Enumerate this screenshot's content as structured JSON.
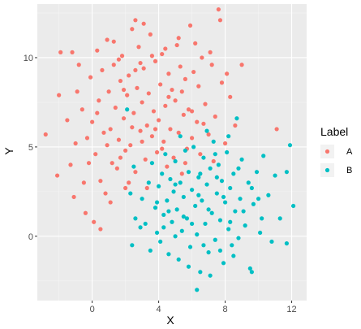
{
  "chart_data": {
    "type": "scatter",
    "title": "",
    "xlabel": "X",
    "ylabel": "Y",
    "xlim": [
      -3.3,
      12.9
    ],
    "ylim": [
      -3.6,
      13.0
    ],
    "x_ticks": [
      0,
      4,
      8,
      12
    ],
    "y_ticks": [
      0,
      5,
      10
    ],
    "grid": true,
    "panel_background": "#ebebeb",
    "legend": {
      "title": "Label",
      "placement": "right"
    },
    "series": [
      {
        "name": "A",
        "color": "#f8766d",
        "points": [
          [
            -2.8,
            5.7
          ],
          [
            -2.1,
            3.4
          ],
          [
            -1.9,
            10.3
          ],
          [
            -1.2,
            10.3
          ],
          [
            -1.5,
            6.5
          ],
          [
            -1.0,
            5.2
          ],
          [
            -1.3,
            4.0
          ],
          [
            -0.9,
            8.1
          ],
          [
            -0.6,
            7.1
          ],
          [
            -0.5,
            3.0
          ],
          [
            -0.3,
            5.5
          ],
          [
            -0.1,
            8.9
          ],
          [
            0.0,
            6.4
          ],
          [
            0.2,
            4.6
          ],
          [
            0.3,
            10.4
          ],
          [
            0.4,
            7.6
          ],
          [
            0.5,
            3.1
          ],
          [
            0.6,
            9.3
          ],
          [
            0.7,
            5.8
          ],
          [
            0.8,
            2.4
          ],
          [
            0.9,
            11.0
          ],
          [
            1.0,
            8.1
          ],
          [
            1.1,
            6.0
          ],
          [
            1.2,
            4.1
          ],
          [
            1.3,
            9.6
          ],
          [
            1.4,
            7.2
          ],
          [
            1.5,
            3.8
          ],
          [
            1.6,
            5.4
          ],
          [
            1.7,
            8.7
          ],
          [
            1.8,
            10.1
          ],
          [
            1.9,
            6.6
          ],
          [
            2.0,
            4.8
          ],
          [
            2.1,
            7.9
          ],
          [
            2.2,
            9.0
          ],
          [
            2.3,
            5.1
          ],
          [
            2.4,
            11.6
          ],
          [
            2.5,
            6.9
          ],
          [
            2.6,
            3.6
          ],
          [
            2.7,
            8.3
          ],
          [
            2.8,
            10.6
          ],
          [
            2.9,
            5.9
          ],
          [
            3.0,
            7.5
          ],
          [
            3.1,
            9.4
          ],
          [
            3.2,
            4.3
          ],
          [
            3.3,
            6.2
          ],
          [
            3.4,
            8.0
          ],
          [
            3.5,
            11.3
          ],
          [
            3.6,
            5.6
          ],
          [
            3.7,
            7.0
          ],
          [
            3.8,
            9.8
          ],
          [
            3.9,
            4.7
          ],
          [
            4.0,
            6.5
          ],
          [
            4.1,
            8.5
          ],
          [
            4.2,
            10.2
          ],
          [
            4.3,
            5.3
          ],
          [
            4.4,
            7.3
          ],
          [
            4.5,
            3.9
          ],
          [
            4.6,
            9.1
          ],
          [
            4.7,
            6.0
          ],
          [
            4.8,
            8.2
          ],
          [
            4.9,
            4.4
          ],
          [
            5.0,
            7.6
          ],
          [
            5.1,
            10.7
          ],
          [
            5.2,
            5.8
          ],
          [
            5.3,
            9.5
          ],
          [
            5.4,
            3.5
          ],
          [
            5.5,
            6.8
          ],
          [
            5.6,
            8.8
          ],
          [
            5.7,
            4.9
          ],
          [
            5.8,
            7.1
          ],
          [
            5.9,
            11.8
          ],
          [
            6.0,
            5.5
          ],
          [
            6.1,
            9.2
          ],
          [
            6.3,
            6.4
          ],
          [
            6.4,
            8.4
          ],
          [
            6.5,
            4.6
          ],
          [
            6.6,
            10.0
          ],
          [
            6.8,
            7.4
          ],
          [
            7.0,
            5.7
          ],
          [
            7.2,
            9.6
          ],
          [
            7.4,
            6.7
          ],
          [
            7.6,
            12.7
          ],
          [
            7.7,
            12.1
          ],
          [
            7.8,
            8.6
          ],
          [
            8.0,
            5.2
          ],
          [
            8.3,
            7.8
          ],
          [
            8.6,
            6.2
          ],
          [
            9.0,
            9.6
          ],
          [
            -0.4,
            1.3
          ],
          [
            0.5,
            0.4
          ],
          [
            1.1,
            1.9
          ],
          [
            -1.1,
            2.2
          ],
          [
            -2.0,
            7.9
          ],
          [
            -0.8,
            9.6
          ],
          [
            0.1,
            0.8
          ],
          [
            2.0,
            2.7
          ],
          [
            1.3,
            10.9
          ],
          [
            2.6,
            12.1
          ],
          [
            3.1,
            11.9
          ],
          [
            4.4,
            10.5
          ],
          [
            5.2,
            11.1
          ],
          [
            6.2,
            10.8
          ],
          [
            7.1,
            10.3
          ],
          [
            8.1,
            9.1
          ],
          [
            11.1,
            6.0
          ],
          [
            6.7,
            6.3
          ],
          [
            7.3,
            4.2
          ],
          [
            5.6,
            4.1
          ],
          [
            3.3,
            2.7
          ],
          [
            2.2,
            3.0
          ],
          [
            1.7,
            4.4
          ],
          [
            0.9,
            5.1
          ],
          [
            0.3,
            6.9
          ],
          [
            -0.2,
            4.1
          ],
          [
            1.6,
            9.9
          ],
          [
            2.9,
            9.7
          ],
          [
            3.6,
            10.1
          ],
          [
            4.6,
            7.8
          ],
          [
            5.4,
            8.1
          ],
          [
            6.0,
            7.0
          ],
          [
            2.4,
            6.1
          ],
          [
            3.0,
            5.3
          ],
          [
            3.8,
            6.0
          ],
          [
            4.2,
            4.9
          ],
          [
            1.9,
            8.2
          ],
          [
            2.6,
            9.3
          ]
        ]
      },
      {
        "name": "B",
        "color": "#00bfc4",
        "points": [
          [
            2.1,
            7.1
          ],
          [
            2.3,
            2.4
          ],
          [
            2.5,
            3.9
          ],
          [
            2.6,
            1.0
          ],
          [
            2.4,
            -0.5
          ],
          [
            2.9,
            0.5
          ],
          [
            3.0,
            2.1
          ],
          [
            3.2,
            0.7
          ],
          [
            3.4,
            3.0
          ],
          [
            3.5,
            -0.8
          ],
          [
            3.6,
            4.1
          ],
          [
            3.8,
            1.6
          ],
          [
            3.9,
            0.2
          ],
          [
            4.0,
            2.8
          ],
          [
            4.1,
            -0.3
          ],
          [
            4.2,
            3.5
          ],
          [
            4.3,
            1.2
          ],
          [
            4.4,
            4.6
          ],
          [
            4.5,
            2.0
          ],
          [
            4.6,
            -1.0
          ],
          [
            4.7,
            3.2
          ],
          [
            4.8,
            0.8
          ],
          [
            4.9,
            2.5
          ],
          [
            5.0,
            4.2
          ],
          [
            5.1,
            1.5
          ],
          [
            5.2,
            -1.3
          ],
          [
            5.3,
            3.0
          ],
          [
            5.4,
            0.3
          ],
          [
            5.5,
            2.2
          ],
          [
            5.6,
            4.8
          ],
          [
            5.7,
            1.0
          ],
          [
            5.8,
            3.6
          ],
          [
            5.9,
            -0.6
          ],
          [
            6.0,
            2.6
          ],
          [
            6.1,
            5.0
          ],
          [
            6.2,
            1.7
          ],
          [
            6.3,
            0.1
          ],
          [
            6.4,
            3.3
          ],
          [
            6.5,
            -2.0
          ],
          [
            6.6,
            2.0
          ],
          [
            6.7,
            4.4
          ],
          [
            6.8,
            0.7
          ],
          [
            6.9,
            2.9
          ],
          [
            7.0,
            -0.9
          ],
          [
            7.1,
            3.8
          ],
          [
            7.2,
            1.3
          ],
          [
            7.3,
            5.3
          ],
          [
            7.4,
            -0.2
          ],
          [
            7.5,
            2.4
          ],
          [
            7.6,
            4.0
          ],
          [
            7.7,
            0.9
          ],
          [
            7.8,
            3.1
          ],
          [
            7.9,
            -1.5
          ],
          [
            8.0,
            1.9
          ],
          [
            8.1,
            4.7
          ],
          [
            8.2,
            0.4
          ],
          [
            8.3,
            2.7
          ],
          [
            8.4,
            -0.5
          ],
          [
            8.5,
            3.5
          ],
          [
            8.6,
            1.4
          ],
          [
            8.7,
            6.6
          ],
          [
            8.8,
            -0.1
          ],
          [
            8.9,
            2.1
          ],
          [
            9.0,
            4.3
          ],
          [
            9.2,
            0.6
          ],
          [
            9.4,
            3.0
          ],
          [
            9.5,
            -1.8
          ],
          [
            9.7,
            1.8
          ],
          [
            9.9,
            3.6
          ],
          [
            10.1,
            0.2
          ],
          [
            10.3,
            4.5
          ],
          [
            10.6,
            2.3
          ],
          [
            10.8,
            -0.3
          ],
          [
            11.0,
            3.4
          ],
          [
            11.3,
            1.0
          ],
          [
            11.7,
            3.6
          ],
          [
            12.1,
            1.7
          ],
          [
            11.9,
            5.1
          ],
          [
            11.7,
            -0.4
          ],
          [
            9.6,
            -2.0
          ],
          [
            8.5,
            -1.1
          ],
          [
            6.3,
            -3.0
          ],
          [
            7.1,
            -2.2
          ],
          [
            5.8,
            -1.7
          ],
          [
            5.0,
            0.0
          ],
          [
            6.0,
            0.7
          ],
          [
            7.0,
            1.5
          ],
          [
            7.9,
            2.2
          ],
          [
            8.8,
            3.8
          ],
          [
            9.6,
            2.7
          ],
          [
            10.2,
            1.0
          ],
          [
            6.5,
            3.5
          ],
          [
            7.4,
            4.6
          ],
          [
            8.2,
            5.6
          ],
          [
            5.3,
            5.6
          ],
          [
            6.9,
            5.9
          ],
          [
            5.5,
            1.1
          ],
          [
            4.6,
            1.4
          ],
          [
            3.9,
            1.9
          ],
          [
            6.7,
            -0.5
          ],
          [
            7.7,
            -0.8
          ],
          [
            8.3,
            0.8
          ],
          [
            9.1,
            1.4
          ],
          [
            10.0,
            2.1
          ],
          [
            4.3,
            0.5
          ],
          [
            5.0,
            2.9
          ],
          [
            6.4,
            2.3
          ],
          [
            7.5,
            3.3
          ]
        ]
      }
    ]
  }
}
